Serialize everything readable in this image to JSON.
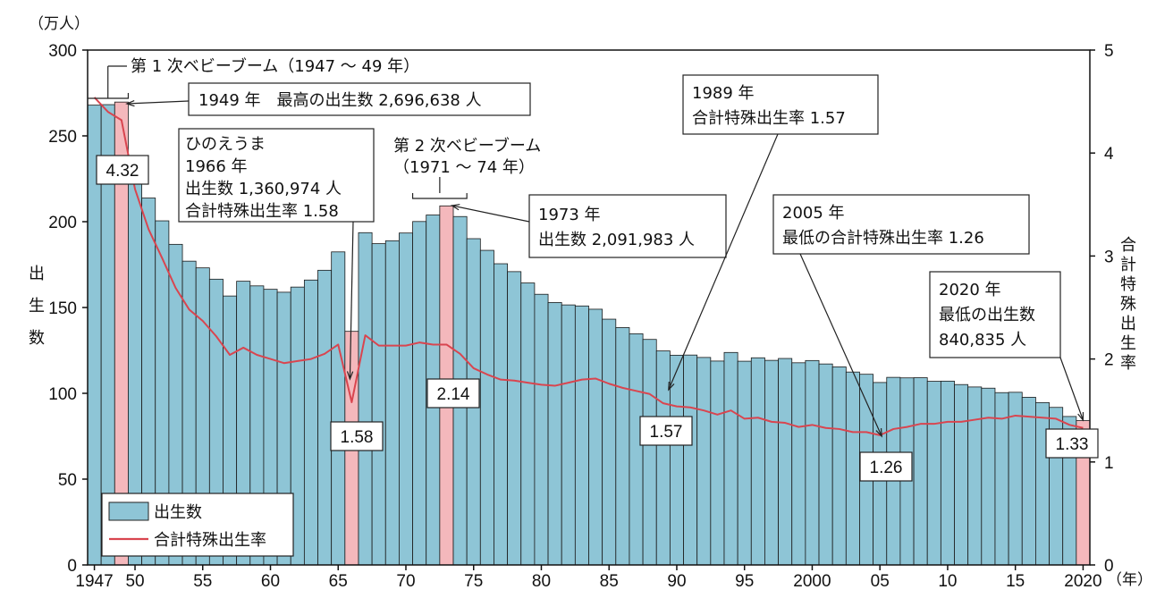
{
  "chart_data": {
    "type": "bar",
    "y_unit": "（万人）",
    "x_unit": "（年）",
    "ylabel_left": "出生数",
    "ylabel_right": "合計特殊出生率",
    "ylim_left": [
      0,
      300
    ],
    "ylim_right": [
      0,
      5
    ],
    "yticks_left": [
      "0",
      "50",
      "100",
      "150",
      "200",
      "250",
      "300"
    ],
    "yticks_right": [
      "0",
      "1",
      "2",
      "3",
      "4",
      "5"
    ],
    "xticks": [
      {
        "year": 1947,
        "label": "1947"
      },
      {
        "year": 1950,
        "label": "50"
      },
      {
        "year": 1955,
        "label": "55"
      },
      {
        "year": 1960,
        "label": "60"
      },
      {
        "year": 1965,
        "label": "65"
      },
      {
        "year": 1970,
        "label": "70"
      },
      {
        "year": 1975,
        "label": "75"
      },
      {
        "year": 1980,
        "label": "80"
      },
      {
        "year": 1985,
        "label": "85"
      },
      {
        "year": 1990,
        "label": "90"
      },
      {
        "year": 1995,
        "label": "95"
      },
      {
        "year": 2000,
        "label": "2000"
      },
      {
        "year": 2005,
        "label": "05"
      },
      {
        "year": 2010,
        "label": "10"
      },
      {
        "year": 2015,
        "label": "15"
      },
      {
        "year": 2020,
        "label": "2020"
      }
    ],
    "years": [
      1947,
      1948,
      1949,
      1950,
      1951,
      1952,
      1953,
      1954,
      1955,
      1956,
      1957,
      1958,
      1959,
      1960,
      1961,
      1962,
      1963,
      1964,
      1965,
      1966,
      1967,
      1968,
      1969,
      1970,
      1971,
      1972,
      1973,
      1974,
      1975,
      1976,
      1977,
      1978,
      1979,
      1980,
      1981,
      1982,
      1983,
      1984,
      1985,
      1986,
      1987,
      1988,
      1989,
      1990,
      1991,
      1992,
      1993,
      1994,
      1995,
      1996,
      1997,
      1998,
      1999,
      2000,
      2001,
      2002,
      2003,
      2004,
      2005,
      2006,
      2007,
      2008,
      2009,
      2010,
      2011,
      2012,
      2013,
      2014,
      2015,
      2016,
      2017,
      2018,
      2019,
      2020
    ],
    "series": [
      {
        "name": "出生数",
        "color": "#8ec5d6",
        "highlight_color": "#f4b8bc",
        "highlight_years": [
          1949,
          1966,
          1973,
          2020
        ],
        "values": [
          267.9,
          268.2,
          269.7,
          233.8,
          213.8,
          200.5,
          186.8,
          177.0,
          173.1,
          166.5,
          156.7,
          165.3,
          162.6,
          160.6,
          158.9,
          161.9,
          166.0,
          171.7,
          182.4,
          136.1,
          193.6,
          187.2,
          188.9,
          193.4,
          200.1,
          203.9,
          209.2,
          203.0,
          190.1,
          183.3,
          175.5,
          170.9,
          164.3,
          157.7,
          152.9,
          151.5,
          150.9,
          149.0,
          143.2,
          138.3,
          134.7,
          131.4,
          124.7,
          122.2,
          122.3,
          120.9,
          118.8,
          123.8,
          118.7,
          120.7,
          119.2,
          120.3,
          117.8,
          119.1,
          117.1,
          115.4,
          112.4,
          111.1,
          106.3,
          109.3,
          109.0,
          109.1,
          107.0,
          107.1,
          105.1,
          103.7,
          103.0,
          100.4,
          100.6,
          97.7,
          94.6,
          91.8,
          86.5,
          84.1
        ]
      },
      {
        "name": "合計特殊出生率",
        "color": "#d9454f",
        "values": [
          4.54,
          4.4,
          4.32,
          3.65,
          3.26,
          2.98,
          2.69,
          2.48,
          2.37,
          2.22,
          2.04,
          2.11,
          2.04,
          2.0,
          1.96,
          1.98,
          2.0,
          2.05,
          2.14,
          1.58,
          2.23,
          2.13,
          2.13,
          2.13,
          2.16,
          2.14,
          2.14,
          2.05,
          1.91,
          1.85,
          1.8,
          1.79,
          1.77,
          1.75,
          1.74,
          1.77,
          1.8,
          1.81,
          1.76,
          1.72,
          1.69,
          1.66,
          1.57,
          1.54,
          1.53,
          1.5,
          1.46,
          1.5,
          1.42,
          1.43,
          1.39,
          1.38,
          1.34,
          1.36,
          1.33,
          1.32,
          1.29,
          1.29,
          1.26,
          1.32,
          1.34,
          1.37,
          1.37,
          1.39,
          1.39,
          1.41,
          1.43,
          1.42,
          1.45,
          1.44,
          1.43,
          1.42,
          1.36,
          1.33
        ]
      }
    ],
    "value_labels": [
      {
        "year": 1949,
        "text": "4.32"
      },
      {
        "year": 1966,
        "text": "1.58"
      },
      {
        "year": 1973,
        "text": "2.14"
      },
      {
        "year": 1989,
        "text": "1.57"
      },
      {
        "year": 2005,
        "text": "1.26"
      },
      {
        "year": 2020,
        "text": "1.33"
      }
    ],
    "annotations": {
      "boom1": "第 1 次ベビーブーム（1947 〜 49 年）",
      "y1949": "1949 年　最高の出生数 2,696,638 人",
      "hinoe": [
        "ひのえうま",
        "1966 年",
        "出生数 1,360,974 人",
        "合計特殊出生率 1.58"
      ],
      "boom2": [
        "第 2 次ベビーブーム",
        "（1971 〜 74 年）"
      ],
      "y1973": [
        "1973 年",
        "出生数 2,091,983 人"
      ],
      "y1989": [
        "1989 年",
        "合計特殊出生率 1.57"
      ],
      "y2005": [
        "2005 年",
        "最低の合計特殊出生率 1.26"
      ],
      "y2020": [
        "2020 年",
        "最低の出生数",
        "840,835 人"
      ]
    },
    "legend": {
      "position": "bottom-left",
      "bar_label": "出生数",
      "line_label": "合計特殊出生率"
    }
  }
}
